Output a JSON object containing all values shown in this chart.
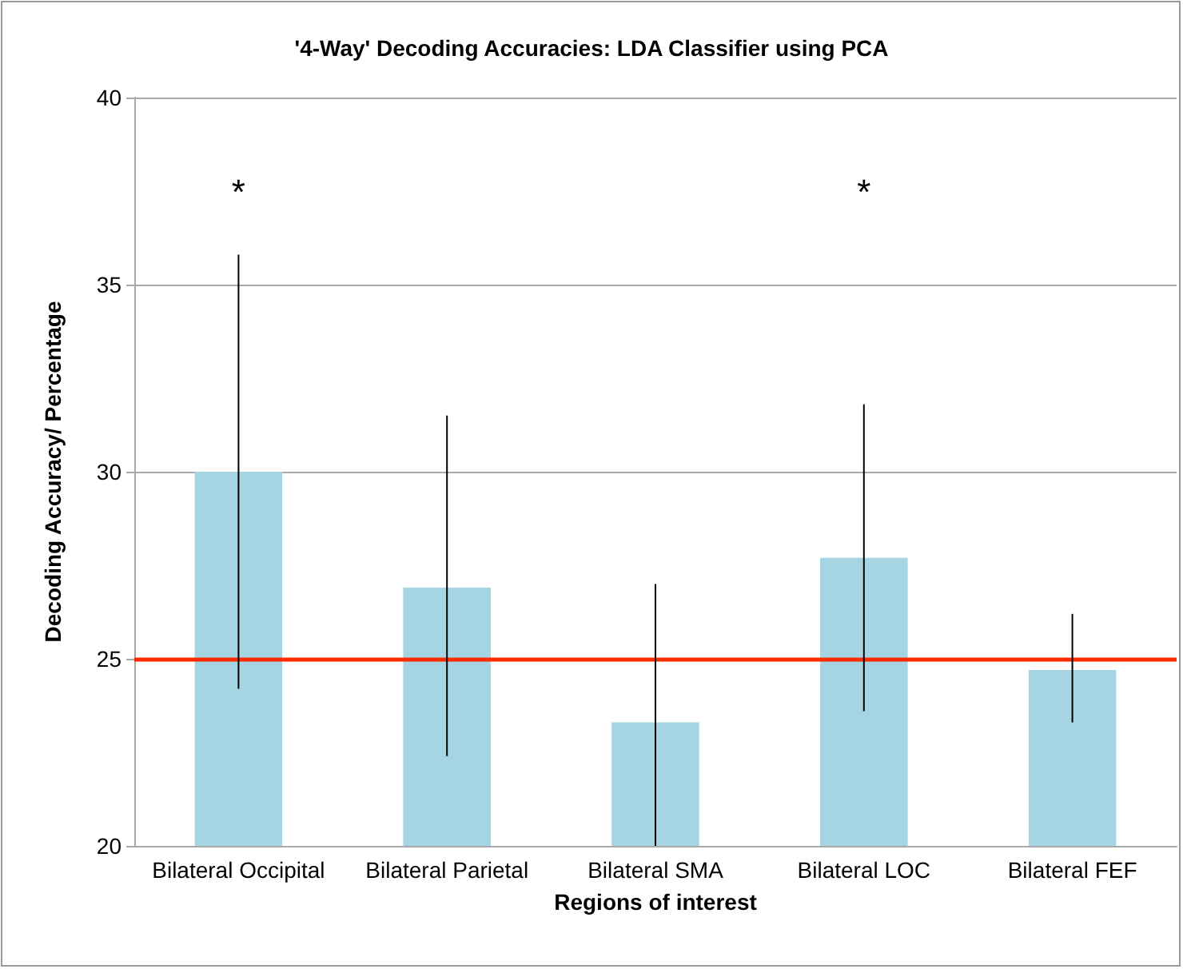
{
  "chart_data": {
    "type": "bar",
    "title": "'4-Way' Decoding Accuracies: LDA Classifier using PCA",
    "xlabel": "Regions of interest",
    "ylabel": "Decoding Accuracy/ Percentage",
    "categories": [
      "Bilateral Occipital",
      "Bilateral Parietal",
      "Bilateral SMA",
      "Bilateral LOC",
      "Bilateral FEF"
    ],
    "values": [
      30.0,
      26.9,
      23.3,
      27.7,
      24.7
    ],
    "color": "#a5d5e3",
    "errors": [
      [
        24.2,
        35.8
      ],
      [
        22.4,
        31.5
      ],
      [
        20,
        27.0
      ],
      [
        23.6,
        31.8
      ],
      [
        23.3,
        26.2
      ]
    ],
    "ylim": [
      20,
      40
    ],
    "yticks": [
      20,
      25,
      30,
      35,
      40
    ],
    "grid": "y",
    "ref_lines": [
      {
        "axis": "y",
        "value": 25,
        "color": "#ff2a00"
      }
    ],
    "annotations": [
      "*",
      "*"
    ]
  }
}
